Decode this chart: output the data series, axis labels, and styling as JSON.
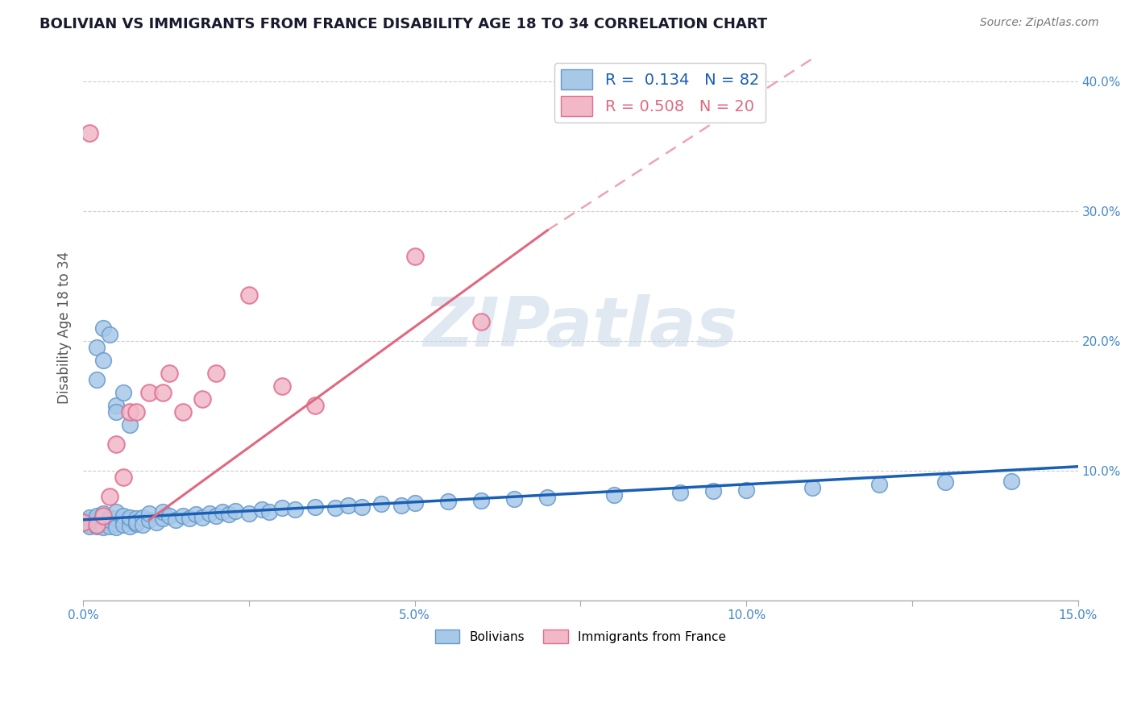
{
  "title": "BOLIVIAN VS IMMIGRANTS FROM FRANCE DISABILITY AGE 18 TO 34 CORRELATION CHART",
  "source": "Source: ZipAtlas.com",
  "ylabel_label": "Disability Age 18 to 34",
  "xlim": [
    0.0,
    0.15
  ],
  "ylim": [
    0.0,
    0.42
  ],
  "bolivians_R": 0.134,
  "bolivians_N": 82,
  "france_R": 0.508,
  "france_N": 20,
  "scatter_face_bolivians": "#a8c8e8",
  "scatter_edge_bolivians": "#6699cc",
  "scatter_face_france": "#f2b8c8",
  "scatter_edge_france": "#e07090",
  "line_color_bolivians": "#1a5fb4",
  "line_color_france": "#e06880",
  "tick_label_color": "#4488cc",
  "grid_color": "#cccccc",
  "title_color": "#1a1a2e",
  "source_color": "#777777",
  "watermark_color": "#c8d8e8",
  "watermark_text": "ZIPatlas",
  "ylabel_color": "#555555",
  "blue_line_y0": 0.062,
  "blue_line_y1": 0.103,
  "pink_line_x0": 0.01,
  "pink_line_x1": 0.15,
  "pink_line_y0": 0.06,
  "pink_line_y1": 0.32,
  "ytick_vals": [
    0.0,
    0.1,
    0.2,
    0.3,
    0.4
  ],
  "ytick_labels": [
    "",
    "10.0%",
    "20.0%",
    "30.0%",
    "40.0%"
  ],
  "xtick_vals": [
    0.0,
    0.025,
    0.05,
    0.075,
    0.1,
    0.125,
    0.15
  ],
  "xtick_labels": [
    "0.0%",
    "",
    "5.0%",
    "",
    "10.0%",
    "",
    "15.0%"
  ],
  "legend_top_label_1": "R =  0.134   N = 82",
  "legend_top_label_2": "R = 0.508   N = 20",
  "legend_top_color_1": "#1a5fb4",
  "legend_top_color_2": "#e06880",
  "legend_bottom_label_1": "Bolivians",
  "legend_bottom_label_2": "Immigrants from France",
  "bolivians_x": [
    0.0,
    0.001,
    0.001,
    0.001,
    0.001,
    0.002,
    0.002,
    0.002,
    0.002,
    0.002,
    0.003,
    0.003,
    0.003,
    0.003,
    0.004,
    0.004,
    0.004,
    0.004,
    0.005,
    0.005,
    0.005,
    0.005,
    0.006,
    0.006,
    0.006,
    0.007,
    0.007,
    0.007,
    0.008,
    0.008,
    0.008,
    0.009,
    0.009,
    0.01,
    0.01,
    0.011,
    0.012,
    0.012,
    0.013,
    0.014,
    0.015,
    0.016,
    0.017,
    0.018,
    0.019,
    0.02,
    0.021,
    0.022,
    0.023,
    0.025,
    0.027,
    0.028,
    0.03,
    0.032,
    0.035,
    0.038,
    0.04,
    0.042,
    0.045,
    0.048,
    0.05,
    0.055,
    0.06,
    0.065,
    0.07,
    0.08,
    0.09,
    0.095,
    0.1,
    0.11,
    0.12,
    0.13,
    0.14,
    0.002,
    0.003,
    0.005,
    0.006,
    0.007,
    0.003,
    0.004,
    0.005,
    0.002
  ],
  "bolivians_y": [
    0.06,
    0.058,
    0.062,
    0.057,
    0.064,
    0.059,
    0.063,
    0.057,
    0.061,
    0.065,
    0.058,
    0.062,
    0.067,
    0.056,
    0.06,
    0.064,
    0.057,
    0.062,
    0.059,
    0.063,
    0.056,
    0.068,
    0.061,
    0.065,
    0.058,
    0.062,
    0.057,
    0.064,
    0.059,
    0.063,
    0.06,
    0.064,
    0.058,
    0.062,
    0.067,
    0.06,
    0.063,
    0.068,
    0.065,
    0.062,
    0.065,
    0.063,
    0.066,
    0.064,
    0.067,
    0.065,
    0.068,
    0.066,
    0.069,
    0.067,
    0.07,
    0.068,
    0.071,
    0.07,
    0.072,
    0.071,
    0.073,
    0.072,
    0.074,
    0.073,
    0.075,
    0.076,
    0.077,
    0.078,
    0.079,
    0.081,
    0.083,
    0.084,
    0.085,
    0.087,
    0.089,
    0.091,
    0.092,
    0.195,
    0.21,
    0.15,
    0.16,
    0.135,
    0.185,
    0.205,
    0.145,
    0.17
  ],
  "france_x": [
    0.0,
    0.001,
    0.002,
    0.003,
    0.004,
    0.005,
    0.006,
    0.007,
    0.008,
    0.01,
    0.012,
    0.013,
    0.015,
    0.018,
    0.02,
    0.025,
    0.03,
    0.035,
    0.05,
    0.06
  ],
  "france_y": [
    0.06,
    0.36,
    0.058,
    0.065,
    0.08,
    0.12,
    0.095,
    0.145,
    0.145,
    0.16,
    0.16,
    0.175,
    0.145,
    0.155,
    0.175,
    0.235,
    0.165,
    0.15,
    0.265,
    0.215
  ]
}
